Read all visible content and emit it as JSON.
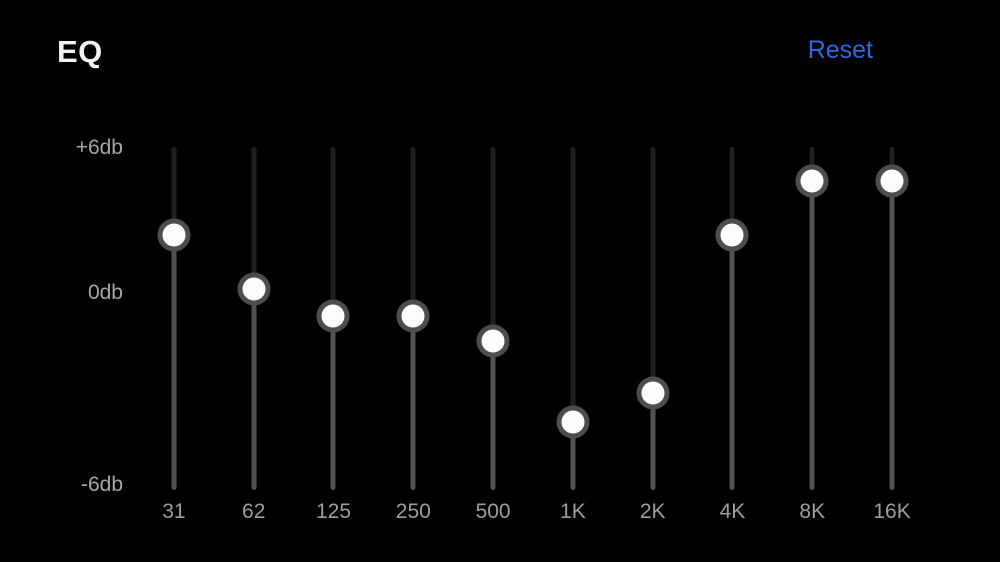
{
  "header": {
    "title": "EQ",
    "reset_label": "Reset"
  },
  "axis": {
    "labels": [
      "+6db",
      "0db",
      "-6db"
    ]
  },
  "sliders": [
    {
      "freq": "31",
      "approx_db": 3,
      "knob_percent": 25.7
    },
    {
      "freq": "62",
      "approx_db": 1,
      "knob_percent": 41.4
    },
    {
      "freq": "125",
      "approx_db": 0,
      "knob_percent": 49.3
    },
    {
      "freq": "250",
      "approx_db": 0,
      "knob_percent": 49.3
    },
    {
      "freq": "500",
      "approx_db": -1,
      "knob_percent": 56.6
    },
    {
      "freq": "1K",
      "approx_db": -3.5,
      "knob_percent": 80.2
    },
    {
      "freq": "2K",
      "approx_db": -2.5,
      "knob_percent": 71.7
    },
    {
      "freq": "4K",
      "approx_db": 3,
      "knob_percent": 25.7
    },
    {
      "freq": "8K",
      "approx_db": 5,
      "knob_percent": 9.9
    },
    {
      "freq": "16K",
      "approx_db": 5,
      "knob_percent": 9.9
    }
  ],
  "colors": {
    "background": "#000000",
    "title": "#f2f2f2",
    "reset_accent": "#2d6ae0",
    "axis_label": "#a6a6a6",
    "freq_label": "#9e9e9e",
    "track_upper": "#202020",
    "track_lower": "#525252",
    "knob_ring": "#4d4d4d",
    "knob_fill": "#fdfdfd"
  }
}
